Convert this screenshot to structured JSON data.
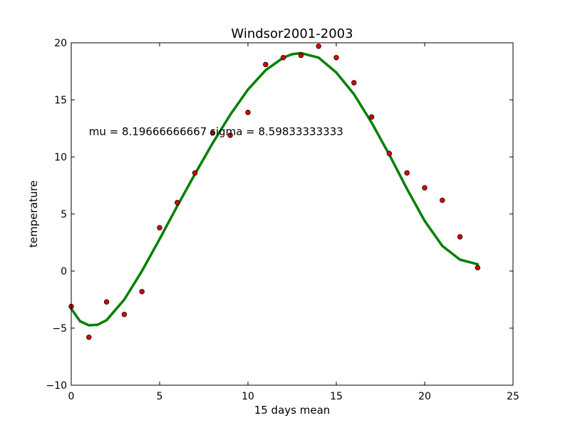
{
  "chart_data": {
    "type": "scatter",
    "title": "Windsor2001-2003",
    "xlabel": "15 days mean",
    "ylabel": "temperature",
    "xlim": [
      0,
      25
    ],
    "ylim": [
      -10,
      20
    ],
    "xticks": [
      0,
      5,
      10,
      15,
      20,
      25
    ],
    "yticks": [
      -10,
      -5,
      0,
      5,
      10,
      15,
      20
    ],
    "grid": false,
    "annotation": {
      "text": "mu = 8.19666666667 sigma = 8.59833333333",
      "x": 1,
      "y": 12.1
    },
    "series": [
      {
        "kind": "scatter",
        "color": "#dd0000",
        "x": [
          0,
          1,
          2,
          3,
          4,
          5,
          6,
          7,
          8,
          9,
          10,
          11,
          12,
          13,
          14,
          15,
          16,
          17,
          18,
          19,
          20,
          21,
          22,
          23
        ],
        "y": [
          -3.1,
          -5.8,
          -2.7,
          -3.8,
          -1.8,
          3.8,
          6.0,
          8.6,
          12.1,
          11.9,
          13.9,
          18.1,
          18.7,
          18.9,
          19.7,
          18.7,
          16.5,
          13.5,
          10.3,
          8.6,
          7.3,
          6.2,
          3.0,
          0.3
        ]
      },
      {
        "kind": "line",
        "color": "#007f00",
        "x": [
          0,
          0.5,
          1,
          1.5,
          2,
          3,
          4,
          5,
          6,
          7,
          8,
          9,
          10,
          11,
          12,
          12.5,
          13,
          14,
          15,
          16,
          17,
          18,
          19,
          20,
          21,
          22,
          23
        ],
        "y": [
          -3.3,
          -4.4,
          -4.75,
          -4.7,
          -4.3,
          -2.5,
          0.0,
          2.8,
          5.7,
          8.5,
          11.2,
          13.7,
          15.9,
          17.6,
          18.7,
          19.0,
          19.1,
          18.7,
          17.4,
          15.5,
          13.0,
          10.2,
          7.2,
          4.4,
          2.2,
          1.0,
          0.6
        ]
      }
    ]
  }
}
